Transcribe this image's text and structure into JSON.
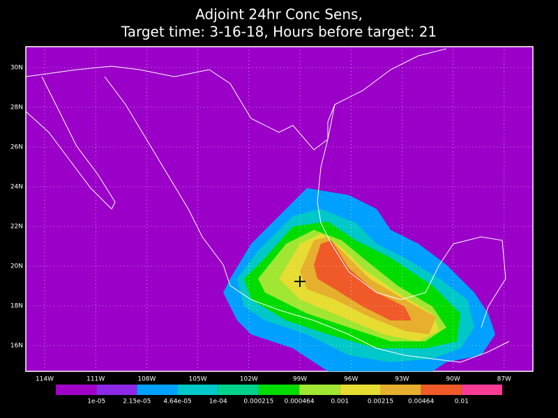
{
  "map": {
    "title": [
      "Adjoint 24hr Conc Sens,",
      "Target time: 3-16-18, Hours before target: 21"
    ],
    "lon_ticks": [
      {
        "value": -114,
        "label": "114W"
      },
      {
        "value": -111,
        "label": "111W"
      },
      {
        "value": -108,
        "label": "108W"
      },
      {
        "value": -105,
        "label": "105W"
      },
      {
        "value": -102,
        "label": "102W"
      },
      {
        "value": -99,
        "label": "99W"
      },
      {
        "value": -96,
        "label": "96W"
      },
      {
        "value": -93,
        "label": "93W"
      },
      {
        "value": -90,
        "label": "90W"
      },
      {
        "value": -87,
        "label": "87W"
      }
    ],
    "lat_ticks": [
      {
        "value": 30,
        "label": "30N"
      },
      {
        "value": 28,
        "label": "28N"
      },
      {
        "value": 26,
        "label": "26N"
      },
      {
        "value": 24,
        "label": "24N"
      },
      {
        "value": 22,
        "label": "22N"
      },
      {
        "value": 20,
        "label": "20N"
      },
      {
        "value": 18,
        "label": "18N"
      },
      {
        "value": 16,
        "label": "16N"
      }
    ]
  },
  "colorbar": {
    "labels": [
      "1e-05",
      "2.15e-05",
      "4.64e-05",
      "1e-04",
      "0.000215",
      "0.000464",
      "0.001",
      "0.00215",
      "0.00464",
      "0.01"
    ],
    "colors": [
      "#a000c8",
      "#8c28e6",
      "#00a0ff",
      "#00c8c8",
      "#00d28c",
      "#00dc00",
      "#a0e632",
      "#e6dc32",
      "#e6af2d",
      "#f05a28",
      "#fa3c96"
    ]
  }
}
